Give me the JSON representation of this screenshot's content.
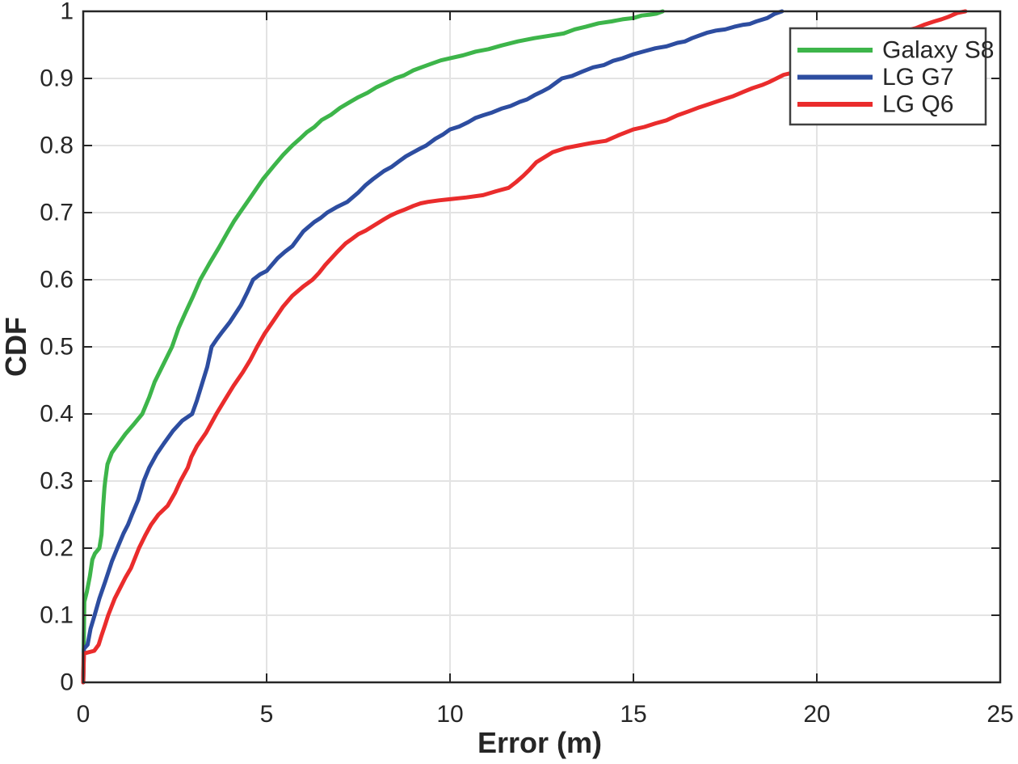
{
  "chart_data": {
    "type": "line",
    "title": "",
    "xlabel": "Error (m)",
    "ylabel": "CDF",
    "xlim": [
      0,
      25
    ],
    "ylim": [
      0,
      1
    ],
    "x_ticks": [
      0,
      5,
      10,
      15,
      20,
      25
    ],
    "x_tick_labels": [
      "0",
      "5",
      "10",
      "15",
      "20",
      "25"
    ],
    "y_ticks": [
      0,
      0.1,
      0.2,
      0.3,
      0.4,
      0.5,
      0.6,
      0.7,
      0.8,
      0.9,
      1
    ],
    "y_tick_labels": [
      "0",
      "0.1",
      "0.2",
      "0.3",
      "0.4",
      "0.5",
      "0.6",
      "0.7",
      "0.8",
      "0.9",
      "1"
    ],
    "grid": true,
    "legend_position": "top-right",
    "series": [
      {
        "name": "Galaxy S8",
        "color": "#3db54a",
        "points": [
          [
            0,
            0
          ],
          [
            0.03,
            0.12
          ],
          [
            0.1,
            0.135
          ],
          [
            0.18,
            0.158
          ],
          [
            0.25,
            0.183
          ],
          [
            0.32,
            0.192
          ],
          [
            0.44,
            0.2
          ],
          [
            0.5,
            0.22
          ],
          [
            0.54,
            0.26
          ],
          [
            0.58,
            0.29
          ],
          [
            0.6,
            0.3
          ],
          [
            0.66,
            0.325
          ],
          [
            0.78,
            0.342
          ],
          [
            0.95,
            0.355
          ],
          [
            1.15,
            0.37
          ],
          [
            1.4,
            0.386
          ],
          [
            1.61,
            0.4
          ],
          [
            1.8,
            0.425
          ],
          [
            1.95,
            0.448
          ],
          [
            2.15,
            0.47
          ],
          [
            2.42,
            0.5
          ],
          [
            2.6,
            0.528
          ],
          [
            2.78,
            0.55
          ],
          [
            3.0,
            0.576
          ],
          [
            3.19,
            0.6
          ],
          [
            3.45,
            0.625
          ],
          [
            3.7,
            0.648
          ],
          [
            3.95,
            0.672
          ],
          [
            4.27,
            0.7
          ],
          [
            4.5,
            0.718
          ],
          [
            4.65,
            0.73
          ],
          [
            4.9,
            0.75
          ],
          [
            5.2,
            0.77
          ],
          [
            5.45,
            0.786
          ],
          [
            5.7,
            0.8
          ],
          [
            6.1,
            0.82
          ],
          [
            6.5,
            0.838
          ],
          [
            7.0,
            0.856
          ],
          [
            7.5,
            0.872
          ],
          [
            8.0,
            0.887
          ],
          [
            8.5,
            0.9
          ],
          [
            9.0,
            0.912
          ],
          [
            9.5,
            0.922
          ],
          [
            10.0,
            0.93
          ],
          [
            10.7,
            0.94
          ],
          [
            11.4,
            0.949
          ],
          [
            12.3,
            0.96
          ],
          [
            13.1,
            0.967
          ],
          [
            13.7,
            0.977
          ],
          [
            14.4,
            0.985
          ],
          [
            15.0,
            0.99
          ],
          [
            15.45,
            0.995
          ],
          [
            15.8,
            1.0
          ]
        ]
      },
      {
        "name": "LG G7",
        "color": "#2d4da0",
        "points": [
          [
            0,
            0
          ],
          [
            0.02,
            0.05
          ],
          [
            0.12,
            0.056
          ],
          [
            0.2,
            0.08
          ],
          [
            0.31,
            0.1
          ],
          [
            0.44,
            0.125
          ],
          [
            0.6,
            0.15
          ],
          [
            0.78,
            0.18
          ],
          [
            0.93,
            0.2
          ],
          [
            1.1,
            0.222
          ],
          [
            1.22,
            0.235
          ],
          [
            1.33,
            0.25
          ],
          [
            1.5,
            0.272
          ],
          [
            1.65,
            0.3
          ],
          [
            1.8,
            0.32
          ],
          [
            2.0,
            0.34
          ],
          [
            2.2,
            0.356
          ],
          [
            2.45,
            0.375
          ],
          [
            2.7,
            0.39
          ],
          [
            2.97,
            0.4
          ],
          [
            3.1,
            0.42
          ],
          [
            3.24,
            0.445
          ],
          [
            3.38,
            0.47
          ],
          [
            3.5,
            0.5
          ],
          [
            3.65,
            0.512
          ],
          [
            3.8,
            0.523
          ],
          [
            4.0,
            0.537
          ],
          [
            4.3,
            0.562
          ],
          [
            4.63,
            0.6
          ],
          [
            4.82,
            0.608
          ],
          [
            5.0,
            0.613
          ],
          [
            5.3,
            0.632
          ],
          [
            5.7,
            0.65
          ],
          [
            6.0,
            0.672
          ],
          [
            6.3,
            0.686
          ],
          [
            6.65,
            0.7
          ],
          [
            6.9,
            0.708
          ],
          [
            7.2,
            0.716
          ],
          [
            7.5,
            0.73
          ],
          [
            7.9,
            0.75
          ],
          [
            8.2,
            0.762
          ],
          [
            8.6,
            0.776
          ],
          [
            9.0,
            0.79
          ],
          [
            9.35,
            0.8
          ],
          [
            9.6,
            0.81
          ],
          [
            10.0,
            0.824
          ],
          [
            10.5,
            0.835
          ],
          [
            10.9,
            0.845
          ],
          [
            11.4,
            0.855
          ],
          [
            11.9,
            0.865
          ],
          [
            12.3,
            0.875
          ],
          [
            12.7,
            0.886
          ],
          [
            13.05,
            0.9
          ],
          [
            13.6,
            0.91
          ],
          [
            14.2,
            0.92
          ],
          [
            14.7,
            0.93
          ],
          [
            15.0,
            0.936
          ],
          [
            15.6,
            0.945
          ],
          [
            16.2,
            0.953
          ],
          [
            16.6,
            0.96
          ],
          [
            17.0,
            0.968
          ],
          [
            17.5,
            0.973
          ],
          [
            18.0,
            0.98
          ],
          [
            18.35,
            0.985
          ],
          [
            18.65,
            0.99
          ],
          [
            19.05,
            1.0
          ]
        ]
      },
      {
        "name": "LG Q6",
        "color": "#ea2c2c",
        "points": [
          [
            0,
            0
          ],
          [
            0.02,
            0.043
          ],
          [
            0.3,
            0.047
          ],
          [
            0.42,
            0.056
          ],
          [
            0.5,
            0.07
          ],
          [
            0.6,
            0.086
          ],
          [
            0.68,
            0.1
          ],
          [
            0.86,
            0.125
          ],
          [
            1.0,
            0.14
          ],
          [
            1.15,
            0.156
          ],
          [
            1.3,
            0.17
          ],
          [
            1.52,
            0.2
          ],
          [
            1.7,
            0.22
          ],
          [
            1.85,
            0.235
          ],
          [
            2.05,
            0.25
          ],
          [
            2.3,
            0.263
          ],
          [
            2.5,
            0.282
          ],
          [
            2.65,
            0.3
          ],
          [
            2.85,
            0.32
          ],
          [
            2.95,
            0.336
          ],
          [
            3.1,
            0.352
          ],
          [
            3.35,
            0.372
          ],
          [
            3.63,
            0.4
          ],
          [
            3.85,
            0.42
          ],
          [
            4.1,
            0.442
          ],
          [
            4.35,
            0.462
          ],
          [
            4.55,
            0.48
          ],
          [
            4.74,
            0.5
          ],
          [
            4.95,
            0.52
          ],
          [
            5.2,
            0.54
          ],
          [
            5.45,
            0.56
          ],
          [
            5.7,
            0.576
          ],
          [
            6.0,
            0.59
          ],
          [
            6.25,
            0.6
          ],
          [
            6.6,
            0.622
          ],
          [
            6.9,
            0.64
          ],
          [
            7.15,
            0.654
          ],
          [
            7.5,
            0.668
          ],
          [
            7.9,
            0.68
          ],
          [
            8.2,
            0.69
          ],
          [
            8.55,
            0.7
          ],
          [
            9.0,
            0.71
          ],
          [
            9.4,
            0.716
          ],
          [
            10.0,
            0.72
          ],
          [
            10.9,
            0.726
          ],
          [
            11.6,
            0.737
          ],
          [
            12.0,
            0.755
          ],
          [
            12.35,
            0.775
          ],
          [
            12.8,
            0.79
          ],
          [
            13.5,
            0.8
          ],
          [
            14.25,
            0.807
          ],
          [
            15.0,
            0.824
          ],
          [
            15.6,
            0.833
          ],
          [
            16.2,
            0.845
          ],
          [
            16.8,
            0.857
          ],
          [
            17.4,
            0.868
          ],
          [
            18.0,
            0.88
          ],
          [
            18.5,
            0.89
          ],
          [
            18.9,
            0.9
          ],
          [
            19.3,
            0.908
          ],
          [
            20.0,
            0.925
          ],
          [
            20.7,
            0.94
          ],
          [
            21.4,
            0.952
          ],
          [
            22.0,
            0.963
          ],
          [
            22.7,
            0.975
          ],
          [
            23.2,
            0.985
          ],
          [
            23.6,
            0.992
          ],
          [
            24.05,
            1.0
          ]
        ]
      }
    ]
  },
  "colors": {
    "axis": "#262626",
    "grid": "#e3e3e3",
    "background": "#ffffff",
    "legend_border": "#404040"
  }
}
